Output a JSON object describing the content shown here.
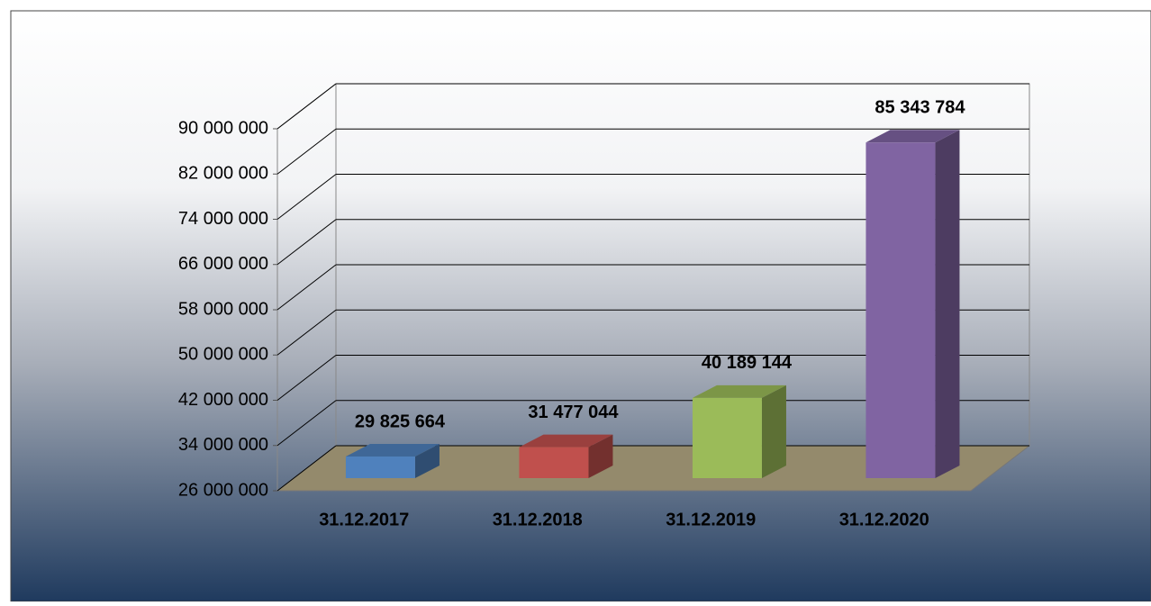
{
  "chart_data": {
    "type": "bar3d",
    "categories": [
      "31.12.2017",
      "31.12.2018",
      "31.12.2019",
      "31.12.2020"
    ],
    "values": [
      29825664,
      31477044,
      40189144,
      85343784
    ],
    "value_labels": [
      "29 825 664",
      "31 477 044",
      "40 189 144",
      "85 343 784"
    ],
    "colors": [
      "#4f81bd",
      "#c0504d",
      "#9bbb59",
      "#8064a2"
    ],
    "ylim": [
      26000000,
      90000000
    ],
    "yticks": [
      {
        "value": 26000000,
        "label": "26 000 000"
      },
      {
        "value": 34000000,
        "label": "34 000 000"
      },
      {
        "value": 42000000,
        "label": "42 000 000"
      },
      {
        "value": 50000000,
        "label": "50 000 000"
      },
      {
        "value": 58000000,
        "label": "58 000 000"
      },
      {
        "value": 66000000,
        "label": "66 000 000"
      },
      {
        "value": 74000000,
        "label": "74 000 000"
      },
      {
        "value": 82000000,
        "label": "82 000 000"
      },
      {
        "value": 90000000,
        "label": "90 000 000"
      }
    ],
    "grid": true
  }
}
